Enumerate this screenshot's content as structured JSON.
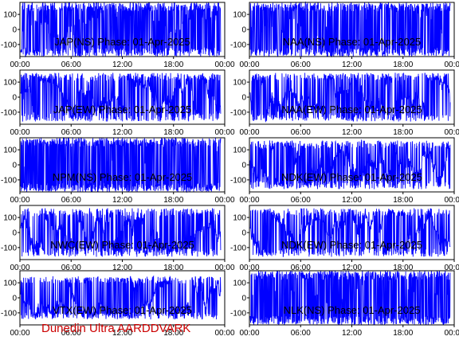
{
  "footer": "Dunedin Ultra AARDDVARK",
  "colors": {
    "trace": "#0000ff",
    "footer": "#cc0000",
    "frame": "#000000"
  },
  "chart_data": [
    {
      "type": "line",
      "title": "JAP(NS) Phase: 01-Apr-2025",
      "ylim": [
        -180,
        180
      ],
      "yticks": [
        "100",
        "0",
        "-100"
      ],
      "xticks": [
        "00:00",
        "06:00",
        "12:00",
        "18:00",
        "00:00"
      ],
      "density": 0.85,
      "amplitude": 1.0,
      "data_end": 0.98
    },
    {
      "type": "line",
      "title": "NAA(NS) Phase: 01-Apr-2025",
      "ylim": [
        -180,
        180
      ],
      "yticks": [
        "100",
        "0",
        "-100"
      ],
      "xticks": [
        "00:00",
        "06:00",
        "12:00",
        "18:00",
        "00:00"
      ],
      "density": 0.9,
      "amplitude": 1.0,
      "data_end": 0.98
    },
    {
      "type": "line",
      "title": "JAP(EW) Phase: 01-Apr-2025",
      "ylim": [
        -180,
        180
      ],
      "yticks": [
        "100",
        "0",
        "-100"
      ],
      "xticks": [
        "00:00",
        "06:00",
        "12:00",
        "18:00",
        "00:00"
      ],
      "density": 0.55,
      "amplitude": 0.9,
      "data_end": 0.98
    },
    {
      "type": "line",
      "title": "NAA(EW) Phase: 01-Apr-2025",
      "ylim": [
        -180,
        180
      ],
      "yticks": [
        "100",
        "0",
        "-100"
      ],
      "xticks": [
        "00:00",
        "06:00",
        "12:00",
        "18:00",
        "00:00"
      ],
      "density": 0.5,
      "amplitude": 0.9,
      "data_end": 0.98
    },
    {
      "type": "line",
      "title": "NPM(NS) Phase: 01-Apr-2025",
      "ylim": [
        -180,
        180
      ],
      "yticks": [
        "100",
        "0",
        "-100"
      ],
      "xticks": [
        "00:00",
        "06:00",
        "12:00",
        "18:00",
        "00:00"
      ],
      "density": 0.98,
      "amplitude": 1.0,
      "data_end": 0.98
    },
    {
      "type": "line",
      "title": "NDK(EW) Phase: 01-Apr-2025",
      "ylim": [
        -180,
        180
      ],
      "yticks": [
        "100",
        "0",
        "-100"
      ],
      "xticks": [
        "00:00",
        "06:00",
        "12:00",
        "18:00",
        "00:00"
      ],
      "density": 0.5,
      "amplitude": 0.9,
      "data_end": 0.98
    },
    {
      "type": "line",
      "title": "NWC(EW) Phase: 01-Apr-2025",
      "ylim": [
        -180,
        180
      ],
      "yticks": [
        "100",
        "0",
        "-100"
      ],
      "xticks": [
        "00:00",
        "06:00",
        "12:00",
        "18:00",
        "00:00"
      ],
      "density": 0.55,
      "amplitude": 0.9,
      "data_end": 0.98
    },
    {
      "type": "line",
      "title": "NDK(EW) Phase: 01-Apr-2025",
      "ylim": [
        -180,
        180
      ],
      "yticks": [
        "100",
        "0",
        "-100"
      ],
      "xticks": [
        "00:00",
        "06:00",
        "12:00",
        "18:00",
        "00:00"
      ],
      "density": 0.5,
      "amplitude": 0.9,
      "data_end": 0.98
    },
    {
      "type": "line",
      "title": "VTX(EW) Phase: 01-Apr-2025",
      "ylim": [
        -180,
        180
      ],
      "yticks": [
        "100",
        "0",
        "-100"
      ],
      "xticks": [
        "00:00",
        "06:00",
        "12:00",
        "18:00",
        "00:00"
      ],
      "density": 0.45,
      "amplitude": 0.8,
      "data_end": 0.98
    },
    {
      "type": "line",
      "title": "NLK(NS) Phase: 01-Apr-2025",
      "ylim": [
        -180,
        180
      ],
      "yticks": [
        "100",
        "0",
        "-100"
      ],
      "xticks": [
        "00:00",
        "06:00",
        "12:00",
        "18:00",
        "00:00"
      ],
      "density": 0.97,
      "amplitude": 1.0,
      "data_end": 0.98
    }
  ]
}
